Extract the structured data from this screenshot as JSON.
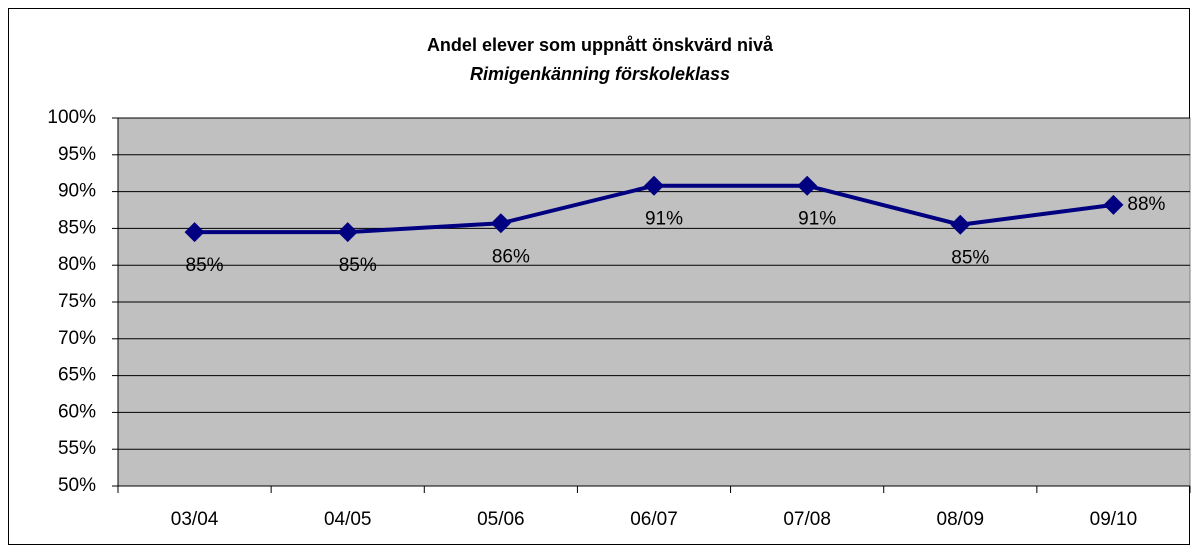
{
  "chart_data": {
    "type": "line",
    "title": "Andel elever som uppnått önskvärd nivå",
    "subtitle": "Rimigenkänning förskoleklass",
    "categories": [
      "03/04",
      "04/05",
      "05/06",
      "06/07",
      "07/08",
      "08/09",
      "09/10"
    ],
    "series": [
      {
        "color": "#000080",
        "values": [
          84.5,
          84.5,
          85.7,
          90.8,
          90.8,
          85.5,
          88.2
        ],
        "value_labels": [
          "85%",
          "85%",
          "86%",
          "91%",
          "91%",
          "85%",
          "88%"
        ]
      }
    ],
    "ylim": [
      50,
      100
    ],
    "yticks": [
      {
        "value": 50,
        "label": "50%"
      },
      {
        "value": 55,
        "label": "55%"
      },
      {
        "value": 60,
        "label": "60%"
      },
      {
        "value": 65,
        "label": "65%"
      },
      {
        "value": 70,
        "label": "70%"
      },
      {
        "value": 75,
        "label": "75%"
      },
      {
        "value": 80,
        "label": "80%"
      },
      {
        "value": 85,
        "label": "85%"
      },
      {
        "value": 90,
        "label": "90%"
      },
      {
        "value": 95,
        "label": "95%"
      },
      {
        "value": 100,
        "label": "100%"
      }
    ],
    "grid": true,
    "plot_background": "#c0c0c0"
  }
}
